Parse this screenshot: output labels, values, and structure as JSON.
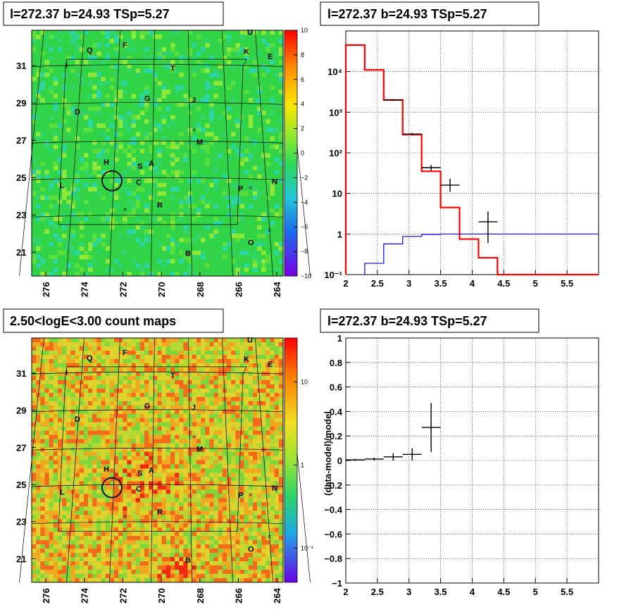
{
  "panels": {
    "tl": {
      "title": "l=272.37 b=24.93 TSp=5.27",
      "scale": "linear",
      "colorbar_ticks": [
        "10",
        "8",
        "6",
        "4",
        "2",
        "0",
        "−2",
        "−4",
        "−6",
        "−8",
        "−10"
      ],
      "base_color": "#31d447"
    },
    "bl": {
      "title": "2.50<logE<3.00 count maps",
      "scale": "log",
      "colorbar_ticks": [
        "10",
        "1",
        "10⁻¹"
      ],
      "base_color": "#d9d932"
    }
  },
  "map": {
    "x_ticks": [
      "276",
      "274",
      "272",
      "270",
      "268",
      "266",
      "264"
    ],
    "y_ticks": [
      "31",
      "29",
      "27",
      "25",
      "23",
      "21"
    ],
    "labels": [
      "U",
      "F",
      "Q",
      "K",
      "E",
      "I",
      "T",
      "G",
      "J",
      "D",
      "M",
      "H",
      "S",
      "A",
      "L",
      "C",
      "P",
      "N",
      "R",
      "O",
      "B"
    ]
  },
  "chart_data": [
    {
      "type": "line",
      "title": "l=272.37 b=24.93 TSp=5.27",
      "xlabel": "",
      "ylabel": "",
      "xlim": [
        2,
        6
      ],
      "ylim": [
        0.1,
        100000
      ],
      "yscale": "log",
      "x_tick_labels": [
        "2",
        "2.5",
        "3",
        "3.5",
        "4",
        "4.5",
        "5",
        "5.5"
      ],
      "y_tick_labels": [
        "10⁻¹",
        "1",
        "10",
        "10²",
        "10³",
        "10⁴"
      ],
      "grid": true,
      "series": [
        {
          "color": "#ff0000",
          "style": "step",
          "edges": [
            2,
            2.3,
            2.6,
            2.9,
            3.2,
            3.5,
            3.8,
            4.1,
            4.4,
            6
          ],
          "values": [
            45000,
            11000,
            2000,
            280,
            35,
            4.5,
            0.75,
            0.26,
            0.1
          ]
        },
        {
          "color": "#0000ff",
          "style": "step",
          "edges": [
            2.3,
            2.6,
            2.9,
            3.2,
            3.5,
            6
          ],
          "values": [
            0.19,
            0.57,
            0.87,
            0.98,
            1.0
          ]
        },
        {
          "color": "#000000",
          "style": "points",
          "x": [
            2.75,
            3.05,
            3.35,
            3.65,
            4.25
          ],
          "xerr": [
            0.15,
            0.15,
            0.15,
            0.15,
            0.15
          ],
          "y": [
            2000,
            290,
            43,
            16,
            2
          ],
          "ylow": [
            1900,
            270,
            36,
            11,
            0.6
          ],
          "yhigh": [
            2100,
            310,
            50,
            23,
            3.6
          ]
        }
      ]
    },
    {
      "type": "scatter",
      "title": "l=272.37 b=24.93 TSp=5.27",
      "xlabel": "",
      "ylabel": "(data-model)/model",
      "xlim": [
        2,
        6
      ],
      "ylim": [
        -1,
        1
      ],
      "x_tick_labels": [
        "2",
        "2.5",
        "3",
        "3.5",
        "4",
        "4.5",
        "5",
        "5.5"
      ],
      "y_tick_labels": [
        "1",
        "0.8",
        "0.6",
        "0.4",
        "0.2",
        "0",
        "−0.2",
        "−0.4",
        "−0.6",
        "−0.8",
        "−1"
      ],
      "grid": true,
      "series": [
        {
          "color": "#000000",
          "x": [
            2.15,
            2.45,
            2.75,
            3.05,
            3.35
          ],
          "xerr": [
            0.15,
            0.15,
            0.15,
            0.15,
            0.15
          ],
          "y": [
            0.005,
            0.012,
            0.03,
            0.05,
            0.27
          ],
          "yerr": [
            0.008,
            0.012,
            0.03,
            0.05,
            0.2
          ]
        }
      ]
    }
  ]
}
